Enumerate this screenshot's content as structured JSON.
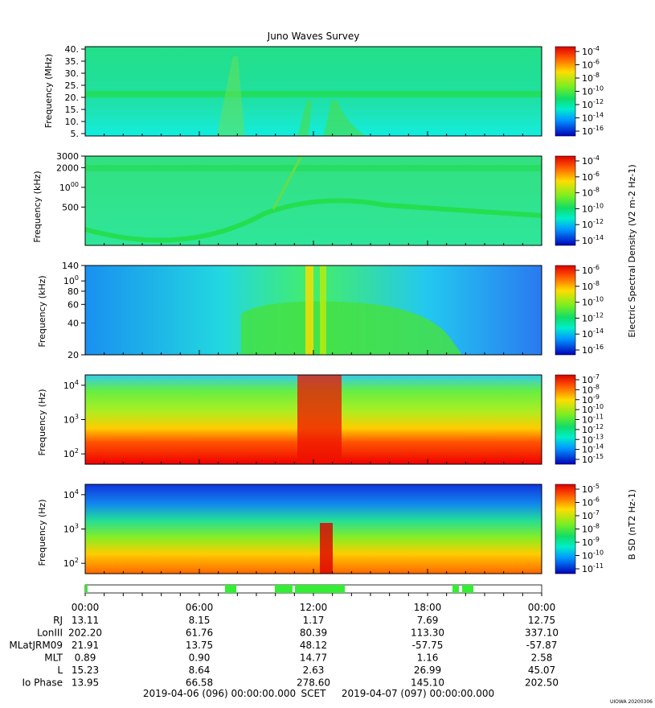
{
  "title": "Juno Waves Survey",
  "colors": {
    "band_high": "#cc0000",
    "band_mid": "#33dd33",
    "band_low": "#0044ee",
    "overview_bar": "#33ee33"
  },
  "chart_data": [
    {
      "type": "heatmap",
      "panel": "HFR high",
      "ylabel": "Frequency (MHz)",
      "yticks": [
        "40.",
        "35.",
        "30.",
        "25.",
        "20.",
        "15.",
        "10.",
        "5."
      ],
      "ylim": [
        4,
        41
      ],
      "colorbar_label": "",
      "colorbar_ticks": [
        "10-4",
        "10-6",
        "10-8",
        "10-10",
        "10-12",
        "10-14",
        "10-16"
      ],
      "dominant_level": "10-12",
      "features": [
        "narrow band near 21 MHz"
      ]
    },
    {
      "type": "heatmap",
      "panel": "HFR low",
      "ylabel": "Frequency (kHz)",
      "yticks": [
        "3000",
        "2000",
        "1000",
        "500"
      ],
      "ylim": [
        130,
        3000
      ],
      "colorbar_label": "",
      "colorbar_ticks": [
        "10-4",
        "10-6",
        "10-8",
        "10-10",
        "10-12",
        "10-14"
      ],
      "dominant_level": "10-11"
    },
    {
      "type": "heatmap",
      "panel": "LFR high",
      "ylabel": "Frequency (kHz)",
      "yticks": [
        "140",
        "100",
        "80",
        "60",
        "40",
        "20"
      ],
      "ylim": [
        20,
        140
      ],
      "colorbar_label": "Electric Spectral Density (V2 m-2 Hz-1)",
      "colorbar_ticks": [
        "10-6",
        "10-8",
        "10-10",
        "10-12",
        "10-14",
        "10-16"
      ],
      "dominant_level": "10-12"
    },
    {
      "type": "heatmap",
      "panel": "LFR E",
      "ylabel": "Frequency (Hz)",
      "yticks": [
        "10^4",
        "10^3",
        "10^2"
      ],
      "ylim": [
        50,
        20000
      ],
      "colorbar_label": "",
      "colorbar_ticks": [
        "10-7",
        "10-8",
        "10-9",
        "10-10",
        "10-11",
        "10-12",
        "10-13",
        "10-14",
        "10-15"
      ],
      "dominant_level": "10-10"
    },
    {
      "type": "heatmap",
      "panel": "LFR B",
      "ylabel": "Frequency (Hz)",
      "yticks": [
        "10^4",
        "10^3",
        "10^2"
      ],
      "ylim": [
        50,
        20000
      ],
      "colorbar_label": "B SD (nT2 Hz-1)",
      "colorbar_ticks": [
        "10-5",
        "10-6",
        "10-7",
        "10-8",
        "10-9",
        "10-10",
        "10-11"
      ],
      "dominant_level": "10-8"
    }
  ],
  "time_axis": {
    "ticks": [
      "00:00",
      "06:00",
      "12:00",
      "18:00",
      "00:00"
    ],
    "rows": [
      {
        "label": "RJ",
        "values": [
          "13.11",
          "8.15",
          "1.17",
          "7.69",
          "12.75"
        ]
      },
      {
        "label": "LonIII",
        "values": [
          "202.20",
          "61.76",
          "80.39",
          "113.30",
          "337.10"
        ]
      },
      {
        "label": "MLatJRM09",
        "values": [
          "21.91",
          "13.75",
          "48.12",
          "-57.75",
          "-57.87"
        ]
      },
      {
        "label": "MLT",
        "values": [
          "0.89",
          "0.90",
          "14.77",
          "1.16",
          "2.58"
        ]
      },
      {
        "label": "L",
        "values": [
          "15.23",
          "8.64",
          "2.63",
          "26.99",
          "45.07"
        ]
      },
      {
        "label": "Io Phase",
        "values": [
          "13.95",
          "66.58",
          "278.60",
          "145.10",
          "202.50"
        ]
      }
    ],
    "start": "2019-04-06 (096) 00:00:00.000",
    "scet_label": "SCET",
    "end": "2019-04-07 (097) 00:00:00.000"
  },
  "footer_tag": "UIOWA 20200306"
}
